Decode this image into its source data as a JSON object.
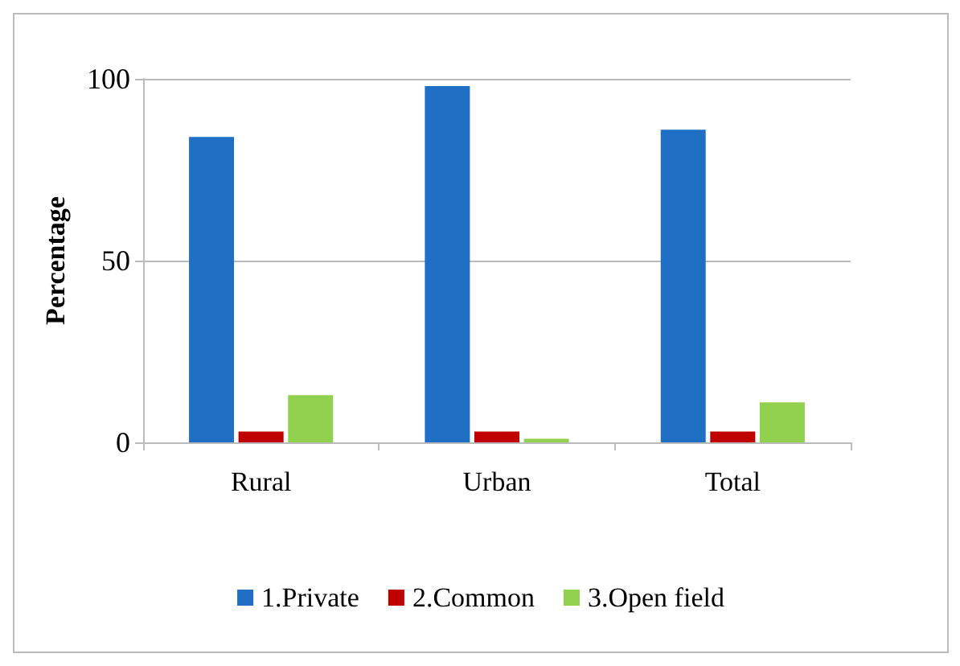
{
  "chart_data": {
    "type": "bar",
    "ylabel": "Percentage",
    "categories": [
      "Rural",
      "Urban",
      "Total"
    ],
    "series": [
      {
        "name": "1.Private",
        "color": "#1f6fc5",
        "values": [
          84,
          98,
          86
        ]
      },
      {
        "name": "2.Common",
        "color": "#c00000",
        "values": [
          3,
          3,
          3
        ]
      },
      {
        "name": "3.Open field",
        "color": "#92d050",
        "values": [
          13,
          1,
          11
        ]
      }
    ],
    "ylim": [
      0,
      100
    ],
    "yticks": [
      0,
      50,
      100
    ],
    "grid": "y",
    "legend": "bottom"
  }
}
